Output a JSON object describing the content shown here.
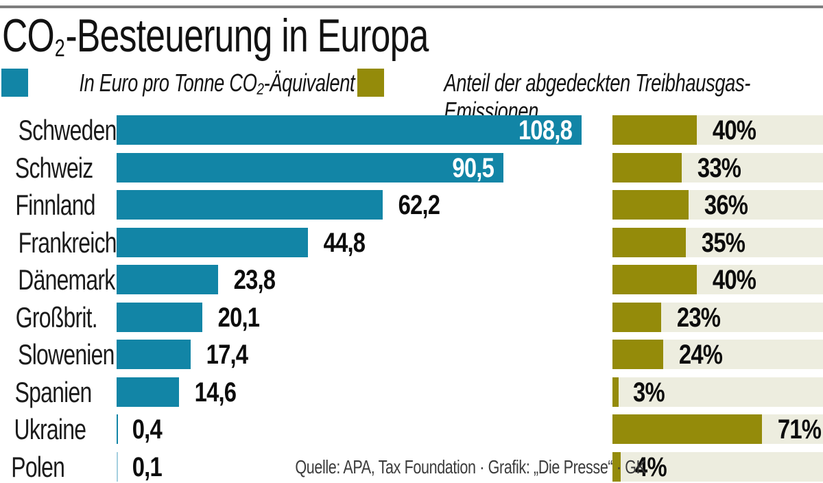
{
  "title": {
    "co": "CO",
    "sub": "2",
    "rest": "-Besteuerung in Europa"
  },
  "legend": {
    "tax_label": "In Euro pro Tonne CO₂-Äquivalent",
    "emissions_label": "Anteil der abgedeckten Treibhausgas-Emissionen"
  },
  "colors": {
    "tax": "#1285a6",
    "tax_faint": "#a5cfdf",
    "emissions": "#948b0a",
    "track": "#ededdf",
    "rule": "#7e7e7e"
  },
  "chart_data": {
    "type": "bar",
    "orientation": "horizontal",
    "title": "CO₂-Besteuerung in Europa",
    "categories": [
      "Schweden",
      "Schweiz",
      "Finnland",
      "Frankreich",
      "Dänemark",
      "Großbrit.",
      "Slowenien",
      "Spanien",
      "Ukraine",
      "Polen"
    ],
    "series": [
      {
        "name": "In Euro pro Tonne CO₂-Äquivalent",
        "color": "#1285a6",
        "values": [
          108.8,
          90.5,
          62.2,
          44.8,
          23.8,
          20.1,
          17.4,
          14.6,
          0.4,
          0.1
        ],
        "labels": [
          "108,8",
          "90,5",
          "62,2",
          "44,8",
          "23,8",
          "20,1",
          "17,4",
          "14,6",
          "0,4",
          "0,1"
        ]
      },
      {
        "name": "Anteil der abgedeckten Treibhausgas-Emissionen",
        "color": "#948b0a",
        "values": [
          40,
          33,
          36,
          35,
          40,
          23,
          24,
          3,
          71,
          4
        ],
        "labels": [
          "40%",
          "33%",
          "36%",
          "35%",
          "40%",
          "23%",
          "24%",
          "3%",
          "71%",
          "4%"
        ]
      }
    ],
    "xlim_tax": [
      0,
      112
    ],
    "xlim_share": [
      0,
      100
    ],
    "grid": false,
    "legend_position": "top",
    "source": "Quelle: APA, Tax Foundation · Grafik: „Die Presse“ · GK"
  }
}
